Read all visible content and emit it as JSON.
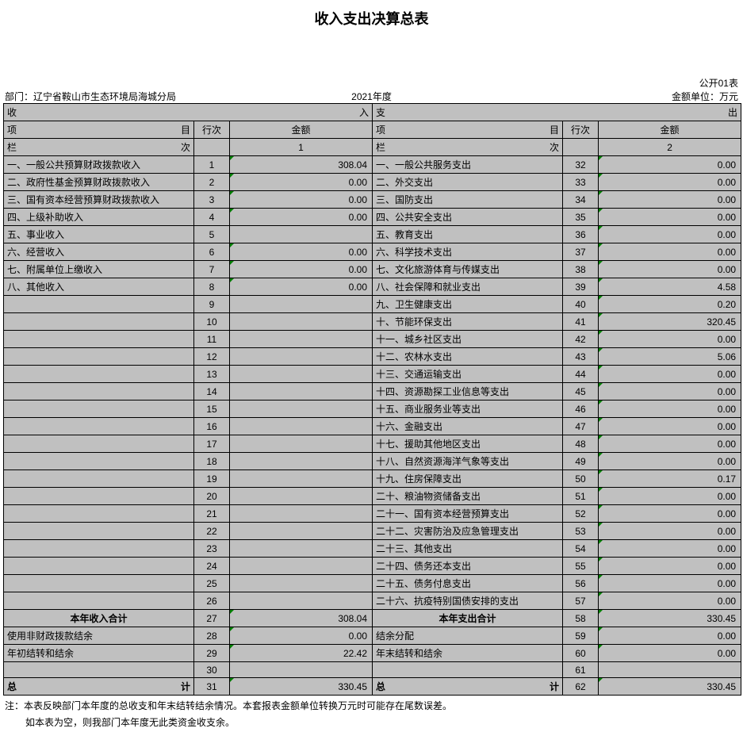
{
  "title": "收入支出决算总表",
  "form_no": "公开01表",
  "dept_label": "部门：",
  "dept_name": "辽宁省鞍山市生态环境局海城分局",
  "year": "2021年度",
  "unit": "金额单位：万元",
  "left_header": {
    "main": "收",
    "main_r": "入",
    "item": "项",
    "item_r": "目",
    "seq": "行次",
    "amt": "金额",
    "col": "栏",
    "col_r": "次",
    "col_amt": "1"
  },
  "right_header": {
    "main": "支",
    "main_r": "出",
    "item": "项",
    "item_r": "目",
    "seq": "行次",
    "amt": "金额",
    "col": "栏",
    "col_r": "次",
    "col_amt": "2"
  },
  "rows": [
    {
      "l": "一、一般公共预算财政拨款收入",
      "ls": "1",
      "la": "308.04",
      "r": "一、一般公共服务支出",
      "rs": "32",
      "ra": "0.00"
    },
    {
      "l": "二、政府性基金预算财政拨款收入",
      "ls": "2",
      "la": "0.00",
      "r": "二、外交支出",
      "rs": "33",
      "ra": "0.00"
    },
    {
      "l": "三、国有资本经营预算财政拨款收入",
      "ls": "3",
      "la": "0.00",
      "r": "三、国防支出",
      "rs": "34",
      "ra": "0.00"
    },
    {
      "l": "四、上级补助收入",
      "ls": "4",
      "la": "0.00",
      "r": "四、公共安全支出",
      "rs": "35",
      "ra": "0.00"
    },
    {
      "l": "五、事业收入",
      "ls": "5",
      "la": "",
      "r": "五、教育支出",
      "rs": "36",
      "ra": "0.00"
    },
    {
      "l": "六、经营收入",
      "ls": "6",
      "la": "0.00",
      "r": "六、科学技术支出",
      "rs": "37",
      "ra": "0.00"
    },
    {
      "l": "七、附属单位上缴收入",
      "ls": "7",
      "la": "0.00",
      "r": "七、文化旅游体育与传媒支出",
      "rs": "38",
      "ra": "0.00"
    },
    {
      "l": "八、其他收入",
      "ls": "8",
      "la": "0.00",
      "r": "八、社会保障和就业支出",
      "rs": "39",
      "ra": "4.58"
    },
    {
      "l": "",
      "ls": "9",
      "la": "",
      "r": "九、卫生健康支出",
      "rs": "40",
      "ra": "0.20"
    },
    {
      "l": "",
      "ls": "10",
      "la": "",
      "r": "十、节能环保支出",
      "rs": "41",
      "ra": "320.45"
    },
    {
      "l": "",
      "ls": "11",
      "la": "",
      "r": "十一、城乡社区支出",
      "rs": "42",
      "ra": "0.00"
    },
    {
      "l": "",
      "ls": "12",
      "la": "",
      "r": "十二、农林水支出",
      "rs": "43",
      "ra": "5.06"
    },
    {
      "l": "",
      "ls": "13",
      "la": "",
      "r": "十三、交通运输支出",
      "rs": "44",
      "ra": "0.00"
    },
    {
      "l": "",
      "ls": "14",
      "la": "",
      "r": "十四、资源勘探工业信息等支出",
      "rs": "45",
      "ra": "0.00"
    },
    {
      "l": "",
      "ls": "15",
      "la": "",
      "r": "十五、商业服务业等支出",
      "rs": "46",
      "ra": "0.00"
    },
    {
      "l": "",
      "ls": "16",
      "la": "",
      "r": "十六、金融支出",
      "rs": "47",
      "ra": "0.00"
    },
    {
      "l": "",
      "ls": "17",
      "la": "",
      "r": "十七、援助其他地区支出",
      "rs": "48",
      "ra": "0.00"
    },
    {
      "l": "",
      "ls": "18",
      "la": "",
      "r": "十八、自然资源海洋气象等支出",
      "rs": "49",
      "ra": "0.00"
    },
    {
      "l": "",
      "ls": "19",
      "la": "",
      "r": "十九、住房保障支出",
      "rs": "50",
      "ra": "0.17"
    },
    {
      "l": "",
      "ls": "20",
      "la": "",
      "r": "二十、粮油物资储备支出",
      "rs": "51",
      "ra": "0.00"
    },
    {
      "l": "",
      "ls": "21",
      "la": "",
      "r": "二十一、国有资本经营预算支出",
      "rs": "52",
      "ra": "0.00"
    },
    {
      "l": "",
      "ls": "22",
      "la": "",
      "r": "二十二、灾害防治及应急管理支出",
      "rs": "53",
      "ra": "0.00"
    },
    {
      "l": "",
      "ls": "23",
      "la": "",
      "r": "二十三、其他支出",
      "rs": "54",
      "ra": "0.00"
    },
    {
      "l": "",
      "ls": "24",
      "la": "",
      "r": "二十四、债务还本支出",
      "rs": "55",
      "ra": "0.00"
    },
    {
      "l": "",
      "ls": "25",
      "la": "",
      "r": "二十五、债务付息支出",
      "rs": "56",
      "ra": "0.00"
    },
    {
      "l": "",
      "ls": "26",
      "la": "",
      "r": "二十六、抗疫特别国债安排的支出",
      "rs": "57",
      "ra": "0.00"
    }
  ],
  "subtotal": {
    "l": "本年收入合计",
    "ls": "27",
    "la": "308.04",
    "r": "本年支出合计",
    "rs": "58",
    "ra": "330.45"
  },
  "extra": [
    {
      "l": "使用非财政拨款结余",
      "ls": "28",
      "la": "0.00",
      "r": "结余分配",
      "rs": "59",
      "ra": "0.00"
    },
    {
      "l": "年初结转和结余",
      "ls": "29",
      "la": "22.42",
      "r": "年末结转和结余",
      "rs": "60",
      "ra": "0.00"
    },
    {
      "l": "",
      "ls": "30",
      "la": "",
      "r": "",
      "rs": "61",
      "ra": ""
    }
  ],
  "total": {
    "l_pre": "总",
    "l_suf": "计",
    "ls": "31",
    "la": "330.45",
    "r_pre": "总",
    "r_suf": "计",
    "rs": "62",
    "ra": "330.45"
  },
  "note1": "注：本表反映部门本年度的总收支和年末结转结余情况。本套报表金额单位转换万元时可能存在尾数误差。",
  "note2": "如本表为空，则我部门本年度无此类资金收支余。"
}
